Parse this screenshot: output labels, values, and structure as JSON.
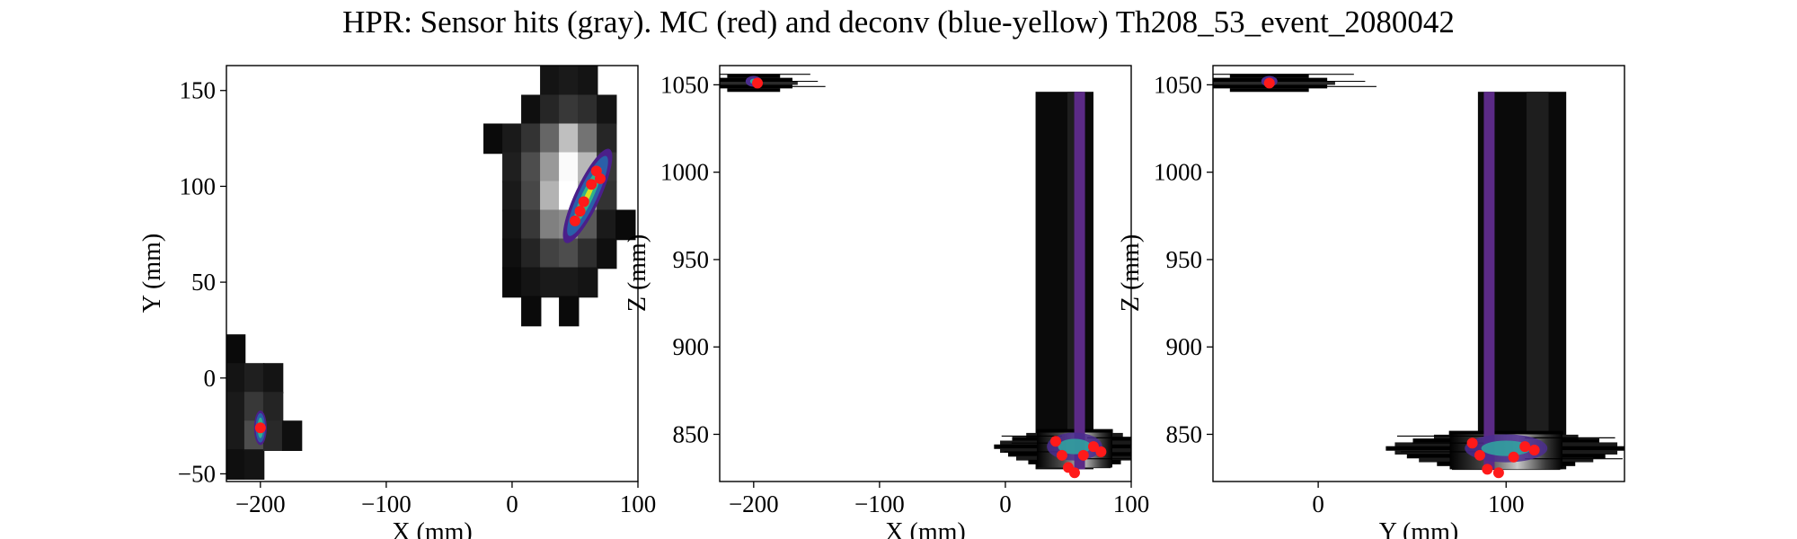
{
  "figure": {
    "title": "HPR: Sensor hits (gray). MC (red) and deconv (blue-yellow) Th208_53_event_2080042"
  },
  "chart_data": [
    {
      "type": "heatmap",
      "xlabel": "X (mm)",
      "ylabel": "Y (mm)",
      "xlim": [
        -227,
        100
      ],
      "ylim": [
        -54,
        163
      ],
      "xticks": [
        {
          "value": -200,
          "label": "−200"
        },
        {
          "value": -100,
          "label": "−100"
        },
        {
          "value": 0,
          "label": "0"
        },
        {
          "value": 100,
          "label": "100"
        }
      ],
      "yticks": [
        {
          "value": -50,
          "label": "−50"
        },
        {
          "value": 0,
          "label": "0"
        },
        {
          "value": 50,
          "label": "50"
        },
        {
          "value": 100,
          "label": "100"
        },
        {
          "value": 150,
          "label": "150"
        }
      ],
      "sensor_pitch": 15.55,
      "sensor_hits_gray": [
        {
          "x": -220,
          "y": 15,
          "v": 0.04
        },
        {
          "x": -220,
          "y": 0,
          "v": 0.08
        },
        {
          "x": -220,
          "y": -15,
          "v": 0.1
        },
        {
          "x": -220,
          "y": -30,
          "v": 0.1
        },
        {
          "x": -220,
          "y": -45,
          "v": 0.06
        },
        {
          "x": -205,
          "y": 0,
          "v": 0.12
        },
        {
          "x": -205,
          "y": -15,
          "v": 0.22
        },
        {
          "x": -205,
          "y": -30,
          "v": 0.3
        },
        {
          "x": -205,
          "y": -45,
          "v": 0.08
        },
        {
          "x": -190,
          "y": 0,
          "v": 0.08
        },
        {
          "x": -190,
          "y": -15,
          "v": 0.14
        },
        {
          "x": -190,
          "y": -30,
          "v": 0.16
        },
        {
          "x": -175,
          "y": -30,
          "v": 0.06
        },
        {
          "x": 30,
          "y": 155,
          "v": 0.08
        },
        {
          "x": 45,
          "y": 155,
          "v": 0.1
        },
        {
          "x": 60,
          "y": 155,
          "v": 0.08
        },
        {
          "x": 15,
          "y": 140,
          "v": 0.06
        },
        {
          "x": 30,
          "y": 140,
          "v": 0.15
        },
        {
          "x": 45,
          "y": 140,
          "v": 0.22
        },
        {
          "x": 60,
          "y": 140,
          "v": 0.18
        },
        {
          "x": 75,
          "y": 140,
          "v": 0.08
        },
        {
          "x": -15,
          "y": 125,
          "v": 0.04
        },
        {
          "x": 0,
          "y": 125,
          "v": 0.1
        },
        {
          "x": 15,
          "y": 125,
          "v": 0.2
        },
        {
          "x": 30,
          "y": 125,
          "v": 0.4
        },
        {
          "x": 45,
          "y": 125,
          "v": 0.75
        },
        {
          "x": 60,
          "y": 125,
          "v": 0.45
        },
        {
          "x": 75,
          "y": 125,
          "v": 0.15
        },
        {
          "x": 0,
          "y": 110,
          "v": 0.12
        },
        {
          "x": 15,
          "y": 110,
          "v": 0.3
        },
        {
          "x": 30,
          "y": 110,
          "v": 0.6
        },
        {
          "x": 45,
          "y": 110,
          "v": 0.98
        },
        {
          "x": 60,
          "y": 110,
          "v": 0.72
        },
        {
          "x": 75,
          "y": 110,
          "v": 0.22
        },
        {
          "x": 0,
          "y": 95,
          "v": 0.1
        },
        {
          "x": 15,
          "y": 95,
          "v": 0.28
        },
        {
          "x": 30,
          "y": 95,
          "v": 0.7
        },
        {
          "x": 45,
          "y": 95,
          "v": 1.0
        },
        {
          "x": 60,
          "y": 95,
          "v": 0.65
        },
        {
          "x": 75,
          "y": 95,
          "v": 0.2
        },
        {
          "x": 0,
          "y": 80,
          "v": 0.08
        },
        {
          "x": 15,
          "y": 80,
          "v": 0.22
        },
        {
          "x": 30,
          "y": 80,
          "v": 0.5
        },
        {
          "x": 45,
          "y": 80,
          "v": 0.55
        },
        {
          "x": 60,
          "y": 80,
          "v": 0.35
        },
        {
          "x": 75,
          "y": 80,
          "v": 0.1
        },
        {
          "x": 90,
          "y": 80,
          "v": 0.04
        },
        {
          "x": 0,
          "y": 65,
          "v": 0.06
        },
        {
          "x": 15,
          "y": 65,
          "v": 0.14
        },
        {
          "x": 30,
          "y": 65,
          "v": 0.26
        },
        {
          "x": 45,
          "y": 65,
          "v": 0.3
        },
        {
          "x": 60,
          "y": 65,
          "v": 0.18
        },
        {
          "x": 75,
          "y": 65,
          "v": 0.06
        },
        {
          "x": 0,
          "y": 50,
          "v": 0.04
        },
        {
          "x": 15,
          "y": 50,
          "v": 0.08
        },
        {
          "x": 30,
          "y": 50,
          "v": 0.1
        },
        {
          "x": 45,
          "y": 50,
          "v": 0.1
        },
        {
          "x": 60,
          "y": 50,
          "v": 0.08
        },
        {
          "x": 15,
          "y": 35,
          "v": 0.04
        },
        {
          "x": 45,
          "y": 35,
          "v": 0.04
        }
      ],
      "deconv_blobs": [
        {
          "x": -200,
          "y": -26,
          "rx": 5,
          "ry": 9
        },
        {
          "x": 60,
          "y": 95,
          "rx": 10,
          "ry": 27,
          "angle": 25
        }
      ],
      "mc_hits": [
        {
          "x": -200,
          "y": -26
        },
        {
          "x": 67,
          "y": 108
        },
        {
          "x": 70,
          "y": 104
        },
        {
          "x": 63,
          "y": 101
        },
        {
          "x": 57,
          "y": 92
        },
        {
          "x": 54,
          "y": 87
        },
        {
          "x": 50,
          "y": 82
        }
      ]
    },
    {
      "type": "heatmap",
      "xlabel": "X (mm)",
      "ylabel": "Z (mm)",
      "xlim": [
        -227,
        100
      ],
      "ylim": [
        823,
        1061
      ],
      "xticks": [
        {
          "value": -200,
          "label": "−200"
        },
        {
          "value": -100,
          "label": "−100"
        },
        {
          "value": 0,
          "label": "0"
        },
        {
          "value": 100,
          "label": "100"
        }
      ],
      "yticks": [
        {
          "value": 850,
          "label": "850"
        },
        {
          "value": 900,
          "label": "900"
        },
        {
          "value": 950,
          "label": "950"
        },
        {
          "value": 1000,
          "label": "1000"
        },
        {
          "value": 1050,
          "label": "1050"
        }
      ],
      "vertical_column": {
        "x_from": 24,
        "x_to": 70,
        "z_from": 830,
        "z_to": 1046
      },
      "deconv_line": {
        "x": 59,
        "z_from": 830,
        "z_to": 1046
      },
      "top_cluster": {
        "x": -200,
        "z": 1052
      },
      "bottom_cluster": {
        "x": 55,
        "z": 843
      },
      "mc_hits": [
        {
          "x": -197,
          "z": 1051
        },
        {
          "x": 40,
          "z": 846
        },
        {
          "x": 45,
          "z": 838
        },
        {
          "x": 50,
          "z": 831
        },
        {
          "x": 55,
          "z": 828
        },
        {
          "x": 62,
          "z": 838
        },
        {
          "x": 70,
          "z": 843
        },
        {
          "x": 76,
          "z": 840
        }
      ]
    },
    {
      "type": "heatmap",
      "xlabel": "Y (mm)",
      "ylabel": "Z (mm)",
      "xlim": [
        -56,
        163
      ],
      "ylim": [
        823,
        1061
      ],
      "xticks": [
        {
          "value": 0,
          "label": "0"
        },
        {
          "value": 100,
          "label": "100"
        }
      ],
      "yticks": [
        {
          "value": 850,
          "label": "850"
        },
        {
          "value": 900,
          "label": "900"
        },
        {
          "value": 950,
          "label": "950"
        },
        {
          "value": 1000,
          "label": "1000"
        },
        {
          "value": 1050,
          "label": "1050"
        }
      ],
      "vertical_column": {
        "x_from": 85,
        "x_to": 132,
        "z_from": 830,
        "z_to": 1046
      },
      "deconv_line": {
        "x": 91,
        "z_from": 830,
        "z_to": 1046
      },
      "top_cluster": {
        "x": -26,
        "z": 1052
      },
      "bottom_cluster": {
        "x": 100,
        "z": 842
      },
      "mc_hits": [
        {
          "x": -26,
          "z": 1051
        },
        {
          "x": 82,
          "z": 845
        },
        {
          "x": 86,
          "z": 838
        },
        {
          "x": 90,
          "z": 830
        },
        {
          "x": 96,
          "z": 828
        },
        {
          "x": 104,
          "z": 837
        },
        {
          "x": 110,
          "z": 843
        },
        {
          "x": 115,
          "z": 841
        }
      ]
    }
  ]
}
